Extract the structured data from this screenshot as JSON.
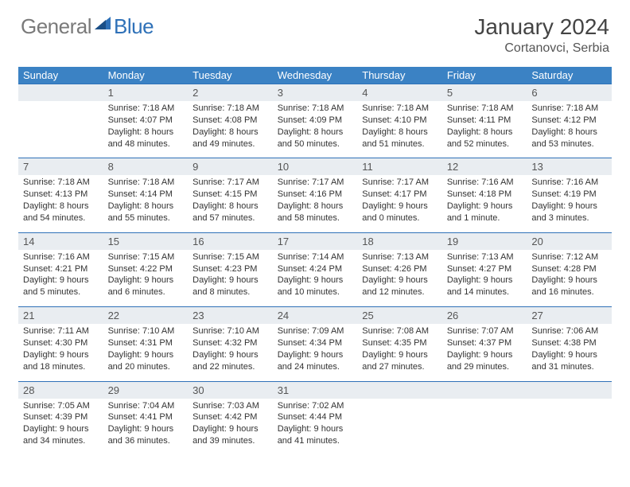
{
  "brand": {
    "general": "General",
    "blue": "Blue"
  },
  "header": {
    "month_year": "January 2024",
    "location": "Cortanovci, Serbia"
  },
  "colors": {
    "header_bg": "#3b82c4",
    "header_text": "#ffffff",
    "daynum_bg": "#e9edf1",
    "rule": "#2f71b8",
    "logo_gray": "#7a7a7a",
    "logo_blue": "#2f71b8"
  },
  "weekdays": [
    "Sunday",
    "Monday",
    "Tuesday",
    "Wednesday",
    "Thursday",
    "Friday",
    "Saturday"
  ],
  "weeks": [
    [
      null,
      {
        "n": "1",
        "sr": "7:18 AM",
        "ss": "4:07 PM",
        "dl": "8 hours and 48 minutes."
      },
      {
        "n": "2",
        "sr": "7:18 AM",
        "ss": "4:08 PM",
        "dl": "8 hours and 49 minutes."
      },
      {
        "n": "3",
        "sr": "7:18 AM",
        "ss": "4:09 PM",
        "dl": "8 hours and 50 minutes."
      },
      {
        "n": "4",
        "sr": "7:18 AM",
        "ss": "4:10 PM",
        "dl": "8 hours and 51 minutes."
      },
      {
        "n": "5",
        "sr": "7:18 AM",
        "ss": "4:11 PM",
        "dl": "8 hours and 52 minutes."
      },
      {
        "n": "6",
        "sr": "7:18 AM",
        "ss": "4:12 PM",
        "dl": "8 hours and 53 minutes."
      }
    ],
    [
      {
        "n": "7",
        "sr": "7:18 AM",
        "ss": "4:13 PM",
        "dl": "8 hours and 54 minutes."
      },
      {
        "n": "8",
        "sr": "7:18 AM",
        "ss": "4:14 PM",
        "dl": "8 hours and 55 minutes."
      },
      {
        "n": "9",
        "sr": "7:17 AM",
        "ss": "4:15 PM",
        "dl": "8 hours and 57 minutes."
      },
      {
        "n": "10",
        "sr": "7:17 AM",
        "ss": "4:16 PM",
        "dl": "8 hours and 58 minutes."
      },
      {
        "n": "11",
        "sr": "7:17 AM",
        "ss": "4:17 PM",
        "dl": "9 hours and 0 minutes."
      },
      {
        "n": "12",
        "sr": "7:16 AM",
        "ss": "4:18 PM",
        "dl": "9 hours and 1 minute."
      },
      {
        "n": "13",
        "sr": "7:16 AM",
        "ss": "4:19 PM",
        "dl": "9 hours and 3 minutes."
      }
    ],
    [
      {
        "n": "14",
        "sr": "7:16 AM",
        "ss": "4:21 PM",
        "dl": "9 hours and 5 minutes."
      },
      {
        "n": "15",
        "sr": "7:15 AM",
        "ss": "4:22 PM",
        "dl": "9 hours and 6 minutes."
      },
      {
        "n": "16",
        "sr": "7:15 AM",
        "ss": "4:23 PM",
        "dl": "9 hours and 8 minutes."
      },
      {
        "n": "17",
        "sr": "7:14 AM",
        "ss": "4:24 PM",
        "dl": "9 hours and 10 minutes."
      },
      {
        "n": "18",
        "sr": "7:13 AM",
        "ss": "4:26 PM",
        "dl": "9 hours and 12 minutes."
      },
      {
        "n": "19",
        "sr": "7:13 AM",
        "ss": "4:27 PM",
        "dl": "9 hours and 14 minutes."
      },
      {
        "n": "20",
        "sr": "7:12 AM",
        "ss": "4:28 PM",
        "dl": "9 hours and 16 minutes."
      }
    ],
    [
      {
        "n": "21",
        "sr": "7:11 AM",
        "ss": "4:30 PM",
        "dl": "9 hours and 18 minutes."
      },
      {
        "n": "22",
        "sr": "7:10 AM",
        "ss": "4:31 PM",
        "dl": "9 hours and 20 minutes."
      },
      {
        "n": "23",
        "sr": "7:10 AM",
        "ss": "4:32 PM",
        "dl": "9 hours and 22 minutes."
      },
      {
        "n": "24",
        "sr": "7:09 AM",
        "ss": "4:34 PM",
        "dl": "9 hours and 24 minutes."
      },
      {
        "n": "25",
        "sr": "7:08 AM",
        "ss": "4:35 PM",
        "dl": "9 hours and 27 minutes."
      },
      {
        "n": "26",
        "sr": "7:07 AM",
        "ss": "4:37 PM",
        "dl": "9 hours and 29 minutes."
      },
      {
        "n": "27",
        "sr": "7:06 AM",
        "ss": "4:38 PM",
        "dl": "9 hours and 31 minutes."
      }
    ],
    [
      {
        "n": "28",
        "sr": "7:05 AM",
        "ss": "4:39 PM",
        "dl": "9 hours and 34 minutes."
      },
      {
        "n": "29",
        "sr": "7:04 AM",
        "ss": "4:41 PM",
        "dl": "9 hours and 36 minutes."
      },
      {
        "n": "30",
        "sr": "7:03 AM",
        "ss": "4:42 PM",
        "dl": "9 hours and 39 minutes."
      },
      {
        "n": "31",
        "sr": "7:02 AM",
        "ss": "4:44 PM",
        "dl": "9 hours and 41 minutes."
      },
      null,
      null,
      null
    ]
  ],
  "labels": {
    "sunrise": "Sunrise:",
    "sunset": "Sunset:",
    "daylight": "Daylight:"
  }
}
